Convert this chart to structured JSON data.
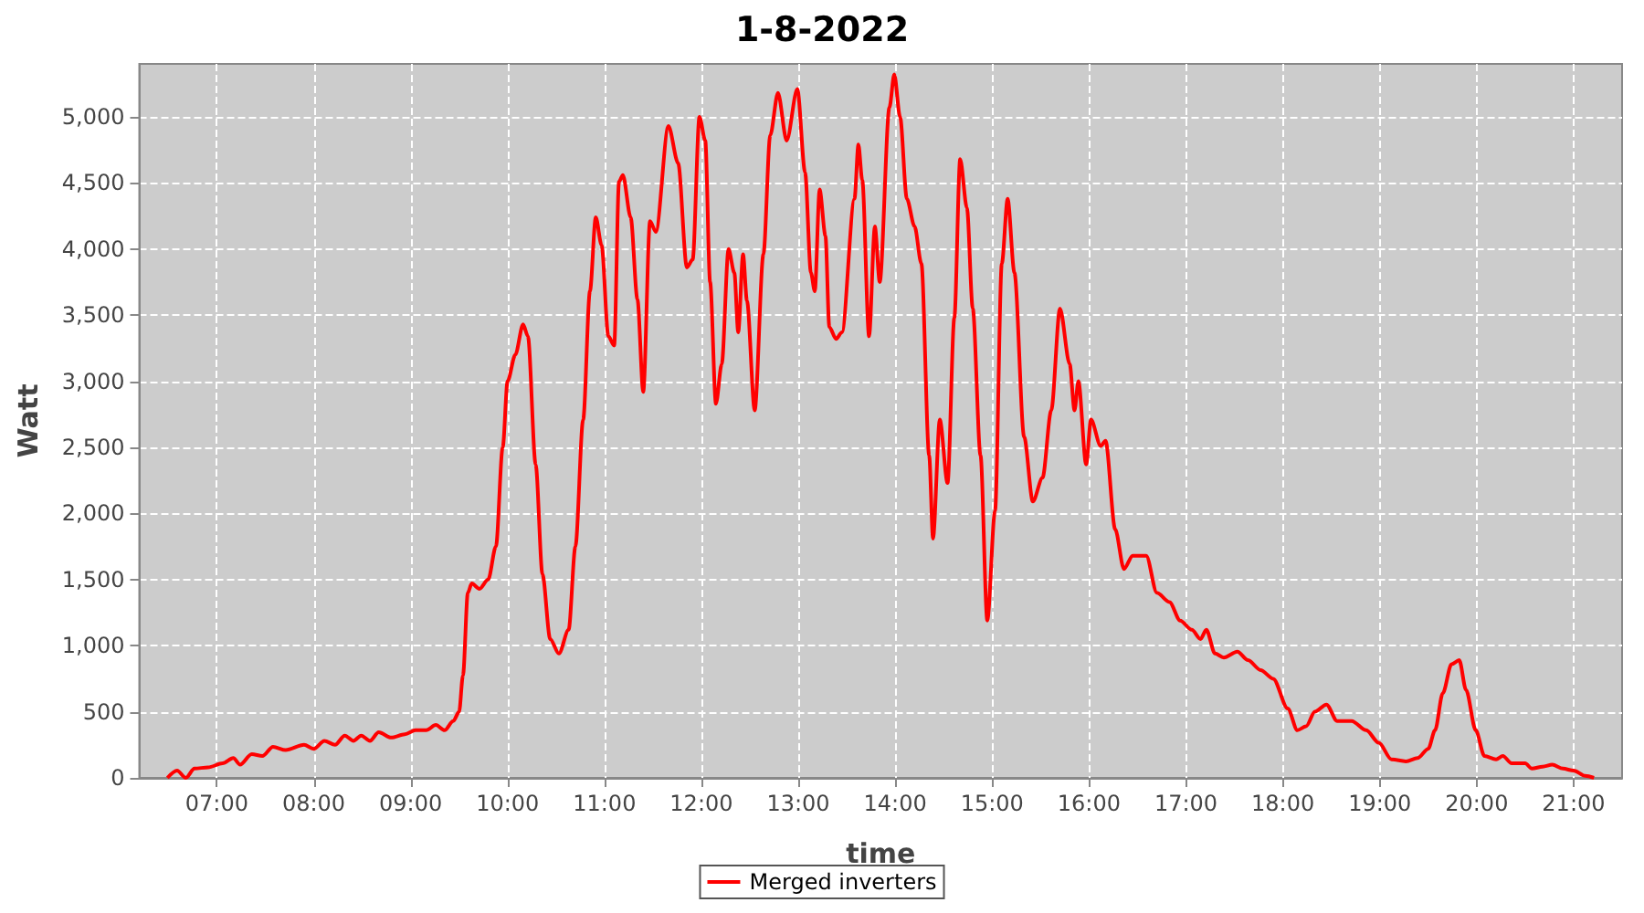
{
  "chart_data": {
    "type": "line",
    "title": "1-8-2022",
    "xlabel": "time",
    "ylabel": "Watt",
    "legend": "bottom",
    "grid": true,
    "marker": "none",
    "line_style": "solid",
    "xlim": [
      6.2,
      21.5
    ],
    "xticks": [
      {
        "value": 7,
        "label": "07:00"
      },
      {
        "value": 8,
        "label": "08:00"
      },
      {
        "value": 9,
        "label": "09:00"
      },
      {
        "value": 10,
        "label": "10:00"
      },
      {
        "value": 11,
        "label": "11:00"
      },
      {
        "value": 12,
        "label": "12:00"
      },
      {
        "value": 13,
        "label": "13:00"
      },
      {
        "value": 14,
        "label": "14:00"
      },
      {
        "value": 15,
        "label": "15:00"
      },
      {
        "value": 16,
        "label": "16:00"
      },
      {
        "value": 17,
        "label": "17:00"
      },
      {
        "value": 18,
        "label": "18:00"
      },
      {
        "value": 19,
        "label": "19:00"
      },
      {
        "value": 20,
        "label": "20:00"
      },
      {
        "value": 21,
        "label": "21:00"
      }
    ],
    "ylim": [
      0,
      5400
    ],
    "yticks": [
      0,
      500,
      {
        "value": 1000,
        "label": "1,000"
      },
      {
        "value": 1500,
        "label": "1,500"
      },
      {
        "value": 2000,
        "label": "2,000"
      },
      {
        "value": 2500,
        "label": "2,500"
      },
      {
        "value": 3000,
        "label": "3,000"
      },
      {
        "value": 3500,
        "label": "3,500"
      },
      {
        "value": 4000,
        "label": "4,000"
      },
      {
        "value": 4500,
        "label": "4,500"
      },
      {
        "value": 5000,
        "label": "5,000"
      }
    ],
    "x": [
      6.49,
      6.59,
      6.68,
      6.77,
      6.91,
      7.06,
      7.17,
      7.24,
      7.36,
      7.47,
      7.58,
      7.71,
      7.9,
      8.0,
      8.11,
      8.22,
      8.32,
      8.41,
      8.49,
      8.58,
      8.67,
      8.8,
      8.94,
      9.05,
      9.16,
      9.26,
      9.35,
      9.44,
      9.5,
      9.54,
      9.59,
      9.63,
      9.71,
      9.8,
      9.88,
      9.95,
      10.0,
      10.08,
      10.16,
      10.21,
      10.29,
      10.36,
      10.44,
      10.53,
      10.63,
      10.7,
      10.78,
      10.85,
      10.91,
      10.97,
      11.04,
      11.1,
      11.15,
      11.19,
      11.27,
      11.34,
      11.4,
      11.47,
      11.53,
      11.66,
      11.76,
      11.85,
      11.91,
      11.98,
      12.04,
      12.09,
      12.15,
      12.21,
      12.28,
      12.34,
      12.38,
      12.43,
      12.47,
      12.55,
      12.64,
      12.71,
      12.79,
      12.88,
      12.99,
      13.07,
      13.13,
      13.17,
      13.22,
      13.28,
      13.32,
      13.39,
      13.45,
      13.58,
      13.62,
      13.66,
      13.73,
      13.79,
      13.84,
      13.94,
      13.99,
      14.05,
      14.12,
      14.2,
      14.27,
      14.35,
      14.39,
      14.46,
      14.54,
      14.61,
      14.67,
      14.74,
      14.8,
      14.88,
      14.95,
      15.03,
      15.1,
      15.16,
      15.23,
      15.33,
      15.42,
      15.52,
      15.61,
      15.7,
      15.8,
      15.85,
      15.89,
      15.97,
      16.02,
      16.12,
      16.17,
      16.27,
      16.36,
      16.45,
      16.59,
      16.7,
      16.83,
      16.94,
      17.06,
      17.15,
      17.21,
      17.3,
      17.39,
      17.53,
      17.64,
      17.77,
      17.9,
      18.05,
      18.15,
      18.24,
      18.33,
      18.45,
      18.56,
      18.71,
      18.86,
      18.99,
      19.12,
      19.27,
      19.39,
      19.5,
      19.57,
      19.65,
      19.74,
      19.82,
      19.89,
      19.99,
      20.08,
      20.2,
      20.27,
      20.36,
      20.5,
      20.57,
      20.68,
      20.78,
      20.89,
      21.0,
      21.12,
      21.21
    ],
    "series": [
      {
        "name": "Merged inverters",
        "color": "#ff0000",
        "values": [
          0,
          55,
          0,
          70,
          80,
          110,
          150,
          100,
          180,
          165,
          235,
          210,
          250,
          220,
          280,
          250,
          320,
          280,
          320,
          280,
          345,
          305,
          330,
          360,
          360,
          400,
          360,
          430,
          500,
          775,
          1400,
          1470,
          1430,
          1500,
          1750,
          2500,
          3000,
          3200,
          3430,
          3340,
          2370,
          1540,
          1050,
          940,
          1120,
          1750,
          2710,
          3680,
          4240,
          4030,
          3340,
          3270,
          4510,
          4560,
          4240,
          3620,
          2920,
          4210,
          4130,
          4930,
          4650,
          3860,
          3920,
          5000,
          4820,
          3750,
          2830,
          3130,
          4000,
          3820,
          3370,
          3960,
          3610,
          2780,
          3960,
          4860,
          5180,
          4820,
          5210,
          4580,
          3820,
          3680,
          4450,
          4100,
          3410,
          3320,
          3370,
          4380,
          4790,
          4520,
          3340,
          4170,
          3750,
          5070,
          5320,
          5000,
          4380,
          4170,
          3890,
          2440,
          1810,
          2710,
          2230,
          3480,
          4680,
          4310,
          3550,
          2440,
          1190,
          2020,
          3890,
          4380,
          3820,
          2580,
          2090,
          2270,
          2780,
          3550,
          3130,
          2780,
          3000,
          2370,
          2710,
          2510,
          2550,
          1880,
          1580,
          1680,
          1680,
          1400,
          1330,
          1190,
          1120,
          1050,
          1120,
          940,
          910,
          955,
          890,
          815,
          750,
          525,
          360,
          390,
          500,
          555,
          430,
          430,
          360,
          265,
          140,
          125,
          150,
          220,
          360,
          640,
          860,
          890,
          665,
          360,
          165,
          140,
          165,
          110,
          110,
          70,
          85,
          100,
          70,
          55,
          15,
          0
        ]
      }
    ]
  }
}
